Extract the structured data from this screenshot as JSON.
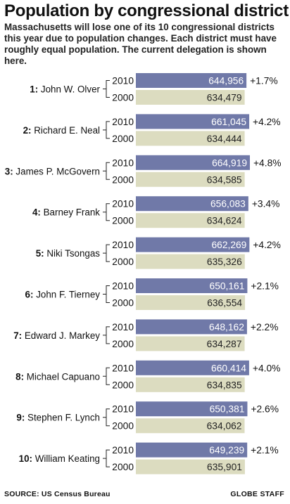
{
  "title": "Population by congressional district",
  "subtitle": "Massachusetts will lose one of its 10 congressional districts this year due to population changes. Each district must have roughly equal population. The current delegation is shown here.",
  "source": "SOURCE: US Census Bureau",
  "credit": "GLOBE STAFF",
  "colors": {
    "bar_2010": "#7079a8",
    "bar_2000": "#dcdcc0",
    "text_2010": "#ffffff",
    "text_2000": "#222222"
  },
  "chart_data": {
    "type": "bar",
    "orientation": "horizontal",
    "series": [
      {
        "name": "2010",
        "values": [
          644956,
          661045,
          664919,
          656083,
          662269,
          650161,
          648162,
          660414,
          650381,
          649239
        ],
        "labels": [
          "644,956",
          "661,045",
          "664,919",
          "656,083",
          "662,269",
          "650,161",
          "648,162",
          "660,414",
          "650,381",
          "649,239"
        ]
      },
      {
        "name": "2000",
        "values": [
          634479,
          634444,
          634585,
          634624,
          635326,
          636554,
          634287,
          634835,
          634062,
          635901
        ],
        "labels": [
          "634,479",
          "634,444",
          "634,585",
          "634,624",
          "635,326",
          "636,554",
          "634,287",
          "634,835",
          "634,062",
          "635,901"
        ]
      }
    ],
    "districts": [
      {
        "number": "1:",
        "name": "John W. Olver",
        "change": "+1.7%"
      },
      {
        "number": "2:",
        "name": "Richard E. Neal",
        "change": "+4.2%"
      },
      {
        "number": "3:",
        "name": "James P. McGovern",
        "change": "+4.8%"
      },
      {
        "number": "4:",
        "name": "Barney Frank",
        "change": "+3.4%"
      },
      {
        "number": "5:",
        "name": "Niki Tsongas",
        "change": "+4.2%"
      },
      {
        "number": "6:",
        "name": "John F. Tierney",
        "change": "+2.1%"
      },
      {
        "number": "7:",
        "name": "Edward J. Markey",
        "change": "+2.2%"
      },
      {
        "number": "8:",
        "name": "Michael Capuano",
        "change": "+4.0%"
      },
      {
        "number": "9:",
        "name": "Stephen F. Lynch",
        "change": "+2.6%"
      },
      {
        "number": "10:",
        "name": "William Keating",
        "change": "+2.1%"
      }
    ]
  }
}
